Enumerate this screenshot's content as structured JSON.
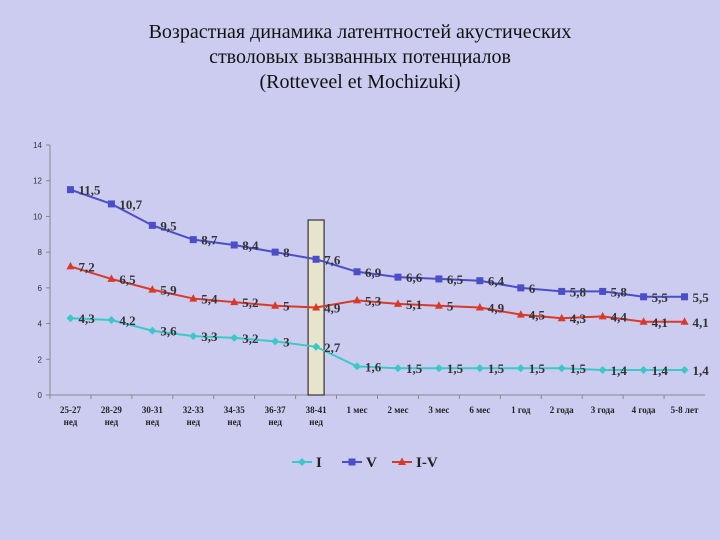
{
  "chart_data": {
    "type": "line",
    "title_lines": [
      "Возрастная динамика латентностей акустических",
      "стволовых вызванных потенциалов",
      "(Rotteveel et Mochizuki)"
    ],
    "categories": [
      [
        "25-27",
        "нед"
      ],
      [
        "28-29",
        "нед"
      ],
      [
        "30-31",
        "нед"
      ],
      [
        "32-33",
        "нед"
      ],
      [
        "34-35",
        "нед"
      ],
      [
        "36-37",
        "нед"
      ],
      [
        "38-41",
        "нед"
      ],
      [
        "1 мес",
        ""
      ],
      [
        "2 мес",
        ""
      ],
      [
        "3 мес",
        ""
      ],
      [
        "6 мес",
        ""
      ],
      [
        "1 год",
        ""
      ],
      [
        "2 года",
        ""
      ],
      [
        "3 года",
        ""
      ],
      [
        "4 года",
        ""
      ],
      [
        "5-8 лет",
        ""
      ]
    ],
    "ylim": [
      0,
      14
    ],
    "yticks": [
      0,
      2,
      4,
      6,
      8,
      10,
      12,
      14
    ],
    "legend_position": "bottom",
    "highlight_category": "38-41",
    "series": [
      {
        "name": "I",
        "color": "#3cc8c8",
        "marker": "diamond",
        "values": [
          4.3,
          4.2,
          3.6,
          3.3,
          3.2,
          3,
          2.7,
          1.6,
          1.5,
          1.5,
          1.5,
          1.5,
          1.5,
          1.4,
          1.4,
          1.4
        ],
        "labels": [
          "4,3",
          "4,2",
          "3,6",
          "3,3",
          "3,2",
          "3",
          "2,7",
          "1,6",
          "1,5",
          "1,5",
          "1,5",
          "1,5",
          "1,5",
          "1,4",
          "1,4",
          "1,4"
        ]
      },
      {
        "name": "V",
        "color": "#4a4fc8",
        "marker": "square",
        "values": [
          11.5,
          10.7,
          9.5,
          8.7,
          8.4,
          8,
          7.6,
          6.9,
          6.6,
          6.5,
          6.4,
          6,
          5.8,
          5.8,
          5.5,
          5.5
        ],
        "labels": [
          "11,5",
          "10,7",
          "9,5",
          "8,7",
          "8,4",
          "8",
          "7,6",
          "6,9",
          "6,6",
          "6,5",
          "6,4",
          "6",
          "5,8",
          "5,8",
          "5,5",
          "5,5"
        ]
      },
      {
        "name": "I-V",
        "color": "#d83a2a",
        "marker": "triangle",
        "values": [
          7.2,
          6.5,
          5.9,
          5.4,
          5.2,
          5,
          4.9,
          5.3,
          5.1,
          5,
          4.9,
          4.5,
          4.3,
          4.4,
          4.1,
          4.1
        ],
        "labels": [
          "7,2",
          "6,5",
          "5,9",
          "5,4",
          "5,2",
          "5",
          "4,9",
          "5,3",
          "5,1",
          "5",
          "4,9",
          "4,5",
          "4,3",
          "4,4",
          "4,1",
          "4,1"
        ]
      }
    ]
  }
}
